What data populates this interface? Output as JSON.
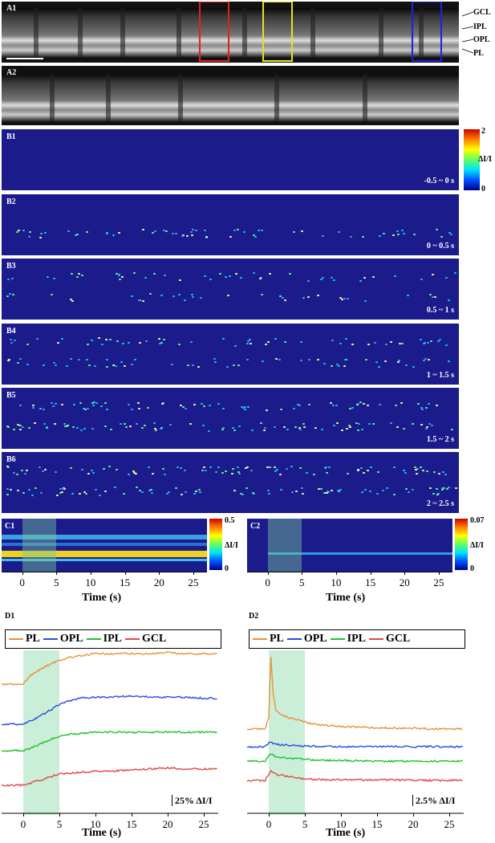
{
  "panels": {
    "A1": "A1",
    "A2": "A2",
    "B1": "B1",
    "B2": "B2",
    "B3": "B3",
    "B4": "B4",
    "B5": "B5",
    "B6": "B6",
    "C1": "C1",
    "C2": "C2",
    "D1": "D1",
    "D2": "D2"
  },
  "layer_labels": {
    "gcl": "GCL",
    "ipl": "IPL",
    "opl": "OPL",
    "pl": "PL"
  },
  "time_windows": {
    "B1": "-0.5 ~ 0 s",
    "B2": "0 ~ 0.5 s",
    "B3": "0.5 ~ 1 s",
    "B4": "1 ~ 1.5 s",
    "B5": "1.5 ~ 2 s",
    "B6": "2 ~ 2.5 s"
  },
  "colorbars": {
    "B": {
      "max": "2",
      "min": "0",
      "label": "ΔI/I"
    },
    "C1": {
      "max": "0.5",
      "min": "0",
      "label": "ΔI/I"
    },
    "C2": {
      "max": "0.07",
      "min": "0",
      "label": "ΔI/I"
    }
  },
  "xlabel": "Time (s)",
  "x_ticks": [
    "0",
    "5",
    "10",
    "15",
    "20",
    "25"
  ],
  "legend": [
    {
      "name": "PL",
      "color": "#e8923a"
    },
    {
      "name": "OPL",
      "color": "#2a4fe0"
    },
    {
      "name": "IPL",
      "color": "#22c02a"
    },
    {
      "name": "GCL",
      "color": "#e04848"
    }
  ],
  "scalebars": {
    "D1": "25% ΔI/I",
    "D2": "2.5% ΔI/I"
  },
  "roi_box_colors": [
    "#e02020",
    "#e8e020",
    "#2020e0"
  ],
  "stimulus_color": "#9fe0b8",
  "chart_data": [
    {
      "type": "line",
      "panel": "D1",
      "xlabel": "Time (s)",
      "xlim": [
        -3,
        27
      ],
      "stimulus": [
        0,
        5
      ],
      "x": [
        -3,
        0,
        1,
        2,
        3,
        4,
        5,
        6,
        8,
        10,
        12,
        15,
        18,
        20,
        22,
        25,
        27
      ],
      "series": [
        {
          "name": "PL",
          "values": [
            0,
            0,
            8,
            12,
            16,
            19,
            22,
            24,
            26,
            28,
            28,
            28,
            28,
            29,
            28,
            28,
            28
          ]
        },
        {
          "name": "OPL",
          "values": [
            0,
            0,
            3,
            6,
            10,
            14,
            18,
            21,
            24,
            25,
            25,
            26,
            25,
            25,
            25,
            24,
            24
          ]
        },
        {
          "name": "IPL",
          "values": [
            0,
            0,
            2,
            5,
            8,
            11,
            13,
            15,
            16,
            17,
            17,
            17,
            17,
            17,
            17,
            17,
            17
          ]
        },
        {
          "name": "GCL",
          "values": [
            0,
            0,
            2,
            4,
            6,
            8,
            10,
            11,
            12,
            13,
            13,
            14,
            15,
            16,
            15,
            15,
            15
          ]
        }
      ]
    },
    {
      "type": "line",
      "panel": "D2",
      "xlabel": "Time (s)",
      "xlim": [
        -3,
        27
      ],
      "stimulus": [
        0,
        5
      ],
      "x": [
        -3,
        -0.5,
        0,
        0.3,
        0.6,
        1,
        2,
        3,
        4,
        5,
        6,
        8,
        10,
        15,
        20,
        25,
        27
      ],
      "series": [
        {
          "name": "PL",
          "values": [
            0,
            0,
            2,
            12,
            6,
            3,
            2.2,
            1.8,
            1.5,
            1.2,
            0.8,
            0.6,
            0.4,
            0.2,
            0.1,
            0.0,
            0.0
          ]
        },
        {
          "name": "OPL",
          "values": [
            0,
            0,
            0.6,
            0.7,
            0.5,
            0.4,
            0.3,
            0.2,
            0.2,
            0.1,
            0.1,
            0.0,
            0.0,
            0.0,
            0.0,
            0.0,
            0.0
          ]
        },
        {
          "name": "IPL",
          "values": [
            0,
            0,
            0.8,
            1.2,
            1.0,
            0.8,
            0.6,
            0.5,
            0.4,
            0.3,
            0.2,
            0.1,
            0.1,
            0.0,
            0.0,
            0.0,
            0.0
          ]
        },
        {
          "name": "GCL",
          "values": [
            0,
            0,
            1.0,
            1.5,
            1.2,
            1.0,
            0.8,
            0.6,
            0.4,
            0.3,
            0.2,
            0.1,
            0.1,
            0.1,
            0.0,
            0.0,
            0.0
          ]
        }
      ]
    }
  ]
}
